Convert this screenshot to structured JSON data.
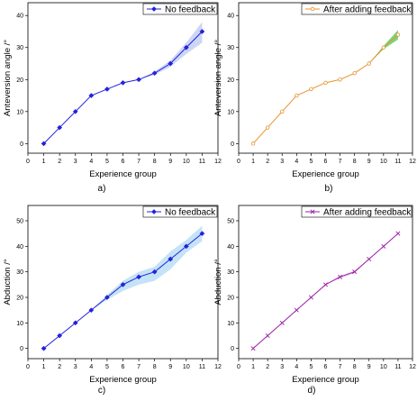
{
  "chart_data": [
    {
      "type": "line",
      "panel_label": "a)",
      "xlabel": "Experience group",
      "ylabel": "Anteversion angle /°",
      "xlim": [
        0,
        12
      ],
      "ylim": [
        -3,
        44
      ],
      "xticks": [
        "0",
        "1",
        "2",
        "3",
        "4",
        "5",
        "6",
        "7",
        "8",
        "9",
        "10",
        "11",
        "12"
      ],
      "yticks": [
        "0",
        "10",
        "20",
        "30",
        "40"
      ],
      "legend_position": "top-right",
      "color": "#2222dd",
      "band_color": "#aabbee",
      "marker": "diamond",
      "series": [
        {
          "name": "No feedback",
          "x": [
            1,
            2,
            3,
            4,
            5,
            6,
            7,
            8,
            9,
            10,
            11
          ],
          "y": [
            0,
            5,
            10,
            15,
            17,
            19,
            20,
            22,
            25,
            30,
            35
          ],
          "band_lower": [
            0,
            5,
            10,
            15,
            17,
            19,
            20,
            21.5,
            24,
            28,
            31.5
          ],
          "band_upper": [
            0,
            5,
            10,
            15,
            17,
            19,
            20,
            22.5,
            26,
            31.5,
            38
          ]
        }
      ]
    },
    {
      "type": "line",
      "panel_label": "b)",
      "xlabel": "Experience group",
      "ylabel": "Anteversion angle /°",
      "xlim": [
        0,
        12
      ],
      "ylim": [
        -3,
        44
      ],
      "xticks": [
        "0",
        "1",
        "2",
        "3",
        "4",
        "5",
        "6",
        "7",
        "8",
        "9",
        "10",
        "11",
        "12"
      ],
      "yticks": [
        "0",
        "10",
        "20",
        "30",
        "40"
      ],
      "legend_position": "top-right",
      "color": "#e8922a",
      "band_color": "#22bb22",
      "marker": "circle",
      "series": [
        {
          "name": "After adding feedback",
          "x": [
            1,
            2,
            3,
            4,
            5,
            6,
            7,
            8,
            9,
            10,
            11
          ],
          "y": [
            0,
            5,
            10,
            15,
            17,
            19,
            20,
            22,
            25,
            30,
            34
          ],
          "band_lower": [
            0,
            5,
            10,
            15,
            17,
            19,
            20,
            22,
            25,
            29.5,
            32.5
          ],
          "band_upper": [
            0,
            5,
            10,
            15,
            17,
            19,
            20,
            22,
            25,
            30.5,
            35.5
          ]
        }
      ]
    },
    {
      "type": "line",
      "panel_label": "c)",
      "xlabel": "Experience group",
      "ylabel": "Abduction /°",
      "xlim": [
        0,
        12
      ],
      "ylim": [
        -4,
        56
      ],
      "xticks": [
        "0",
        "1",
        "2",
        "3",
        "4",
        "5",
        "6",
        "7",
        "8",
        "9",
        "10",
        "11",
        "12"
      ],
      "yticks": [
        "0",
        "10",
        "20",
        "30",
        "40",
        "50"
      ],
      "legend_position": "top-right",
      "color": "#2222dd",
      "band_color": "#9fd0f0",
      "marker": "diamond",
      "series": [
        {
          "name": "No feedback",
          "x": [
            1,
            2,
            3,
            4,
            5,
            6,
            7,
            8,
            9,
            10,
            11
          ],
          "y": [
            0,
            5,
            10,
            15,
            20,
            25,
            28,
            30,
            35,
            40,
            45
          ],
          "band_lower": [
            0,
            5,
            10,
            15,
            19,
            22.5,
            25,
            26.5,
            31,
            37.5,
            42
          ],
          "band_upper": [
            0,
            5,
            10,
            15,
            21,
            26.5,
            30,
            32,
            38,
            42.5,
            48
          ]
        }
      ]
    },
    {
      "type": "line",
      "panel_label": "d)",
      "xlabel": "Experience group",
      "ylabel": "Abduction /°",
      "xlim": [
        0,
        12
      ],
      "ylim": [
        -4,
        56
      ],
      "xticks": [
        "0",
        "1",
        "2",
        "3",
        "4",
        "5",
        "6",
        "7",
        "8",
        "9",
        "10",
        "11",
        "12"
      ],
      "yticks": [
        "0",
        "10",
        "20",
        "30",
        "40",
        "50"
      ],
      "legend_position": "top-right",
      "color": "#9a1fa6",
      "band_color": "#e0b8e8",
      "marker": "cross",
      "series": [
        {
          "name": "After adding feedback",
          "x": [
            1,
            2,
            3,
            4,
            5,
            6,
            7,
            8,
            9,
            10,
            11
          ],
          "y": [
            0,
            5,
            10,
            15,
            20,
            25,
            28,
            30,
            35,
            40,
            45
          ],
          "band_lower": [
            0,
            5,
            10,
            15,
            20,
            25,
            27.5,
            29.5,
            35,
            40,
            45
          ],
          "band_upper": [
            0,
            5,
            10,
            15,
            20,
            25,
            28.5,
            30.5,
            35,
            40,
            45
          ]
        }
      ]
    }
  ]
}
